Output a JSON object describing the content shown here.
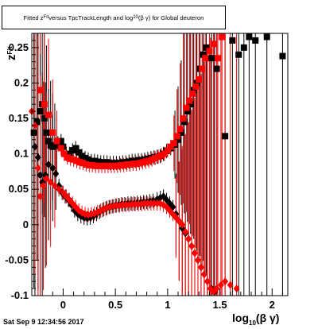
{
  "chart_data": {
    "type": "scatter",
    "title": "Fitted z_{Fit} versus TpcTrackLength and log_{10}(βγ) for Global deuteron",
    "title_parts": {
      "pre": "Fitted  z",
      "sub1": "Fit",
      "mid": "  versus  TpcTrackLength  and  log",
      "sub2": "10",
      "post": "(β γ)  for Global deuteron"
    },
    "xlabel": "log10(β γ)",
    "xlabel_parts": {
      "main": "log",
      "sub": "10",
      "rest": "(β γ)"
    },
    "ylabel": "zFit",
    "ylabel_parts": {
      "main": "z",
      "sub": "Fit"
    },
    "xlim": [
      -0.3,
      2.15
    ],
    "ylim": [
      -0.1,
      0.27
    ],
    "x_ticks": [
      "0",
      "0.5",
      "1",
      "1.5",
      "2"
    ],
    "y_ticks": [
      "-0.1",
      "-0.05",
      "0",
      "0.05",
      "0.1",
      "0.15",
      "0.2",
      "0.25"
    ],
    "x_tick_values": [
      0,
      0.5,
      1,
      1.5,
      2
    ],
    "y_tick_values": [
      -0.1,
      -0.05,
      0,
      0.05,
      0.1,
      0.15,
      0.2,
      0.25
    ],
    "grid": false,
    "legend": "none",
    "colors": {
      "black_series": "#000000",
      "red_series": "#ff0000"
    },
    "series": [
      {
        "marker": "square",
        "color": "#000000",
        "points": [
          [
            -0.28,
            0.13
          ],
          [
            -0.25,
            0.145
          ],
          [
            -0.22,
            0.16
          ],
          [
            -0.2,
            0.17
          ],
          [
            -0.18,
            0.15
          ],
          [
            -0.16,
            0.13
          ],
          [
            -0.14,
            0.118
          ],
          [
            -0.12,
            0.112
          ],
          [
            -0.1,
            0.11
          ],
          [
            -0.08,
            0.112
          ],
          [
            -0.05,
            0.115
          ],
          [
            -0.02,
            0.118
          ],
          [
            0.0,
            0.11
          ],
          [
            0.03,
            0.1
          ],
          [
            0.06,
            0.1
          ],
          [
            0.09,
            0.105
          ],
          [
            0.12,
            0.108
          ],
          [
            0.15,
            0.102
          ],
          [
            0.18,
            0.097
          ],
          [
            0.21,
            0.094
          ],
          [
            0.24,
            0.092
          ],
          [
            0.27,
            0.09
          ],
          [
            0.3,
            0.09
          ],
          [
            0.33,
            0.089
          ],
          [
            0.36,
            0.088
          ],
          [
            0.39,
            0.088
          ],
          [
            0.42,
            0.088
          ],
          [
            0.45,
            0.087
          ],
          [
            0.48,
            0.087
          ],
          [
            0.51,
            0.087
          ],
          [
            0.54,
            0.087
          ],
          [
            0.57,
            0.088
          ],
          [
            0.6,
            0.088
          ],
          [
            0.63,
            0.089
          ],
          [
            0.66,
            0.09
          ],
          [
            0.69,
            0.09
          ],
          [
            0.72,
            0.091
          ],
          [
            0.75,
            0.091
          ],
          [
            0.78,
            0.092
          ],
          [
            0.81,
            0.093
          ],
          [
            0.84,
            0.094
          ],
          [
            0.87,
            0.095
          ],
          [
            0.9,
            0.096
          ],
          [
            0.93,
            0.097
          ],
          [
            0.96,
            0.1
          ],
          [
            0.99,
            0.104
          ],
          [
            1.03,
            0.108
          ],
          [
            1.07,
            0.113
          ],
          [
            1.1,
            0.12
          ],
          [
            1.13,
            0.13
          ],
          [
            1.16,
            0.145
          ],
          [
            1.19,
            0.16
          ],
          [
            1.22,
            0.17
          ],
          [
            1.25,
            0.19
          ],
          [
            1.28,
            0.2
          ],
          [
            1.31,
            0.22
          ],
          [
            1.34,
            0.24
          ],
          [
            1.37,
            0.25
          ],
          [
            1.42,
            0.235
          ],
          [
            1.47,
            0.22
          ],
          [
            1.55,
            0.125
          ],
          [
            1.62,
            0.26
          ],
          [
            1.68,
            0.24
          ],
          [
            1.73,
            0.25
          ],
          [
            1.78,
            0.265
          ],
          [
            1.84,
            0.26
          ],
          [
            1.95,
            0.265
          ],
          [
            2.1,
            0.238
          ]
        ]
      },
      {
        "marker": "square",
        "color": "#ff0000",
        "points": [
          [
            -0.22,
            0.19
          ],
          [
            -0.18,
            0.17
          ],
          [
            -0.14,
            0.155
          ],
          [
            -0.1,
            0.13
          ],
          [
            -0.06,
            0.118
          ],
          [
            -0.02,
            0.108
          ],
          [
            0.01,
            0.1
          ],
          [
            0.04,
            0.095
          ],
          [
            0.07,
            0.093
          ],
          [
            0.1,
            0.092
          ],
          [
            0.13,
            0.09
          ],
          [
            0.16,
            0.088
          ],
          [
            0.19,
            0.087
          ],
          [
            0.22,
            0.085
          ],
          [
            0.25,
            0.084
          ],
          [
            0.28,
            0.084
          ],
          [
            0.31,
            0.083
          ],
          [
            0.34,
            0.083
          ],
          [
            0.37,
            0.083
          ],
          [
            0.4,
            0.083
          ],
          [
            0.43,
            0.083
          ],
          [
            0.46,
            0.083
          ],
          [
            0.49,
            0.083
          ],
          [
            0.52,
            0.083
          ],
          [
            0.55,
            0.084
          ],
          [
            0.58,
            0.084
          ],
          [
            0.61,
            0.085
          ],
          [
            0.64,
            0.085
          ],
          [
            0.67,
            0.086
          ],
          [
            0.7,
            0.086
          ],
          [
            0.73,
            0.087
          ],
          [
            0.76,
            0.088
          ],
          [
            0.79,
            0.089
          ],
          [
            0.82,
            0.09
          ],
          [
            0.85,
            0.092
          ],
          [
            0.88,
            0.094
          ],
          [
            0.91,
            0.096
          ],
          [
            0.94,
            0.098
          ],
          [
            0.97,
            0.1
          ],
          [
            1.0,
            0.105
          ],
          [
            1.03,
            0.11
          ],
          [
            1.06,
            0.115
          ],
          [
            1.09,
            0.125
          ],
          [
            1.12,
            0.135
          ],
          [
            1.15,
            0.15
          ],
          [
            1.18,
            0.165
          ],
          [
            1.21,
            0.175
          ],
          [
            1.24,
            0.185
          ],
          [
            1.27,
            0.195
          ],
          [
            1.3,
            0.205
          ],
          [
            1.33,
            0.22
          ],
          [
            1.36,
            0.235
          ],
          [
            1.4,
            0.245
          ],
          [
            1.44,
            0.255
          ],
          [
            1.48,
            0.235
          ],
          [
            1.52,
            0.265
          ]
        ]
      },
      {
        "marker": "diamond",
        "color": "#000000",
        "points": [
          [
            -0.27,
            0.11
          ],
          [
            -0.24,
            0.095
          ],
          [
            -0.22,
            0.07
          ],
          [
            -0.2,
            0.06
          ],
          [
            -0.17,
            0.07
          ],
          [
            -0.14,
            0.085
          ],
          [
            -0.1,
            0.08
          ],
          [
            -0.07,
            0.072
          ],
          [
            -0.04,
            0.055
          ],
          [
            -0.01,
            0.045
          ],
          [
            0.02,
            0.04
          ],
          [
            0.05,
            0.035
          ],
          [
            0.08,
            0.028
          ],
          [
            0.11,
            0.02
          ],
          [
            0.14,
            0.015
          ],
          [
            0.17,
            0.012
          ],
          [
            0.2,
            0.01
          ],
          [
            0.23,
            0.009
          ],
          [
            0.26,
            0.01
          ],
          [
            0.29,
            0.012
          ],
          [
            0.32,
            0.015
          ],
          [
            0.35,
            0.018
          ],
          [
            0.38,
            0.021
          ],
          [
            0.41,
            0.023
          ],
          [
            0.44,
            0.025
          ],
          [
            0.47,
            0.026
          ],
          [
            0.5,
            0.027
          ],
          [
            0.53,
            0.028
          ],
          [
            0.56,
            0.029
          ],
          [
            0.59,
            0.029
          ],
          [
            0.62,
            0.03
          ],
          [
            0.65,
            0.03
          ],
          [
            0.68,
            0.03
          ],
          [
            0.71,
            0.031
          ],
          [
            0.74,
            0.031
          ],
          [
            0.77,
            0.032
          ],
          [
            0.8,
            0.032
          ],
          [
            0.83,
            0.033
          ],
          [
            0.86,
            0.034
          ],
          [
            0.9,
            0.036
          ],
          [
            0.93,
            0.038
          ],
          [
            0.96,
            0.04
          ],
          [
            0.99,
            0.035
          ],
          [
            1.02,
            0.03
          ],
          [
            1.05,
            0.025
          ],
          [
            1.08,
            0.015
          ],
          [
            1.11,
            0.005
          ],
          [
            1.14,
            -0.005
          ],
          [
            1.17,
            -0.012
          ],
          [
            1.2,
            -0.02
          ],
          [
            1.23,
            -0.03
          ],
          [
            1.26,
            -0.04
          ],
          [
            1.29,
            -0.05
          ],
          [
            1.32,
            -0.06
          ],
          [
            1.35,
            -0.07
          ],
          [
            1.38,
            -0.08
          ],
          [
            1.42,
            -0.09
          ],
          [
            1.45,
            -0.095
          ]
        ]
      },
      {
        "marker": "diamond",
        "color": "#ff0000",
        "points": [
          [
            -0.3,
            0.16
          ],
          [
            -0.27,
            0.14
          ],
          [
            -0.24,
            0.08
          ],
          [
            -0.22,
            0.04
          ],
          [
            -0.19,
            0.055
          ],
          [
            -0.16,
            0.065
          ],
          [
            -0.12,
            0.06
          ],
          [
            -0.08,
            0.055
          ],
          [
            -0.04,
            0.05
          ],
          [
            0.0,
            0.045
          ],
          [
            0.03,
            0.04
          ],
          [
            0.06,
            0.035
          ],
          [
            0.09,
            0.03
          ],
          [
            0.12,
            0.025
          ],
          [
            0.15,
            0.02
          ],
          [
            0.18,
            0.017
          ],
          [
            0.21,
            0.015
          ],
          [
            0.24,
            0.014
          ],
          [
            0.27,
            0.015
          ],
          [
            0.3,
            0.016
          ],
          [
            0.33,
            0.018
          ],
          [
            0.36,
            0.02
          ],
          [
            0.39,
            0.022
          ],
          [
            0.42,
            0.024
          ],
          [
            0.45,
            0.025
          ],
          [
            0.48,
            0.026
          ],
          [
            0.51,
            0.027
          ],
          [
            0.54,
            0.027
          ],
          [
            0.57,
            0.028
          ],
          [
            0.6,
            0.028
          ],
          [
            0.63,
            0.028
          ],
          [
            0.66,
            0.029
          ],
          [
            0.69,
            0.029
          ],
          [
            0.72,
            0.029
          ],
          [
            0.75,
            0.029
          ],
          [
            0.78,
            0.03
          ],
          [
            0.81,
            0.03
          ],
          [
            0.84,
            0.03
          ],
          [
            0.87,
            0.03
          ],
          [
            0.9,
            0.03
          ],
          [
            0.93,
            0.03
          ],
          [
            0.96,
            0.028
          ],
          [
            0.99,
            0.025
          ],
          [
            1.02,
            0.02
          ],
          [
            1.05,
            0.015
          ],
          [
            1.08,
            0.01
          ],
          [
            1.11,
            0.005
          ],
          [
            1.14,
            0.0
          ],
          [
            1.17,
            -0.01
          ],
          [
            1.2,
            -0.02
          ],
          [
            1.23,
            -0.03
          ],
          [
            1.26,
            -0.04
          ],
          [
            1.29,
            -0.05
          ],
          [
            1.32,
            -0.06
          ],
          [
            1.35,
            -0.07
          ],
          [
            1.38,
            -0.08
          ],
          [
            1.41,
            -0.09
          ],
          [
            1.44,
            -0.095
          ],
          [
            1.47,
            -0.09
          ],
          [
            1.51,
            -0.085
          ],
          [
            1.55,
            -0.08
          ],
          [
            1.6,
            -0.085
          ],
          [
            1.66,
            -0.09
          ]
        ]
      }
    ]
  },
  "footer": {
    "timestamp": "Sat Sep  9 12:34:56 2017"
  }
}
